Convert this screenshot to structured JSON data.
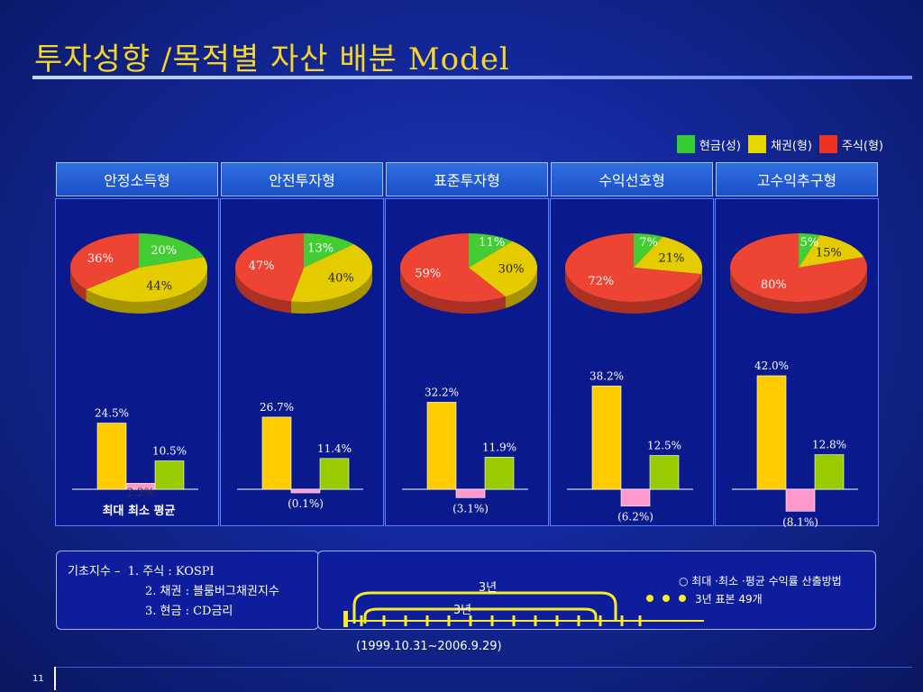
{
  "title": "투자성향 /목적별 자산 배분 Model",
  "legend": [
    {
      "label": "현금(성)",
      "color": "#33cc33"
    },
    {
      "label": "채권(형)",
      "color": "#e6d800"
    },
    {
      "label": "주식(형)",
      "color": "#ee3322"
    }
  ],
  "colors": {
    "cash": "#44cc33",
    "bond": "#e5cc00",
    "stock": "#ee4433",
    "bar_max": "#ffcc00",
    "bar_min": "#ff99cc",
    "bar_avg": "#99cc00"
  },
  "bar_axis_caption": "최대  최소  평균",
  "chart_data": [
    {
      "type": "pie",
      "name": "안정소득형",
      "slices": [
        {
          "label": "현금",
          "value": 20
        },
        {
          "label": "채권",
          "value": 44
        },
        {
          "label": "주식",
          "value": 36
        }
      ]
    },
    {
      "type": "pie",
      "name": "안전투자형",
      "slices": [
        {
          "label": "현금",
          "value": 13
        },
        {
          "label": "채권",
          "value": 40
        },
        {
          "label": "주식",
          "value": 47
        }
      ]
    },
    {
      "type": "pie",
      "name": "표준투자형",
      "slices": [
        {
          "label": "현금",
          "value": 11
        },
        {
          "label": "채권",
          "value": 30
        },
        {
          "label": "주식",
          "value": 59
        }
      ]
    },
    {
      "type": "pie",
      "name": "수익선호형",
      "slices": [
        {
          "label": "현금",
          "value": 7
        },
        {
          "label": "채권",
          "value": 21
        },
        {
          "label": "주식",
          "value": 72
        }
      ]
    },
    {
      "type": "pie",
      "name": "고수익추구형",
      "slices": [
        {
          "label": "현금",
          "value": 5
        },
        {
          "label": "채권",
          "value": 15
        },
        {
          "label": "주식",
          "value": 80
        }
      ]
    },
    {
      "type": "bar",
      "name": "안정소득형",
      "categories": [
        "최대",
        "최소",
        "평균"
      ],
      "values": [
        24.5,
        2.2,
        10.5
      ],
      "labels": [
        "24.5%",
        "2.2%",
        "10.5%"
      ]
    },
    {
      "type": "bar",
      "name": "안전투자형",
      "categories": [
        "최대",
        "최소",
        "평균"
      ],
      "values": [
        26.7,
        -0.1,
        11.4
      ],
      "labels": [
        "26.7%",
        "(0.1%)",
        "11.4%"
      ]
    },
    {
      "type": "bar",
      "name": "표준투자형",
      "categories": [
        "최대",
        "최소",
        "평균"
      ],
      "values": [
        32.2,
        -3.1,
        11.9
      ],
      "labels": [
        "32.2%",
        "(3.1%)",
        "11.9%"
      ]
    },
    {
      "type": "bar",
      "name": "수익선호형",
      "categories": [
        "최대",
        "최소",
        "평균"
      ],
      "values": [
        38.2,
        -6.2,
        12.5
      ],
      "labels": [
        "38.2%",
        "(6.2%)",
        "12.5%"
      ]
    },
    {
      "type": "bar",
      "name": "고수익추구형",
      "categories": [
        "최대",
        "최소",
        "평균"
      ],
      "values": [
        42.0,
        -8.1,
        12.8
      ],
      "labels": [
        "42.0%",
        "(8.1%)",
        "12.8%"
      ]
    }
  ],
  "index_box": {
    "heading": "기초지수 –",
    "items": [
      "1. 주식 : KOSPI",
      "2. 채권 : 블룸버그채권지수",
      "3. 현금 : CD금리"
    ]
  },
  "timeline": {
    "span_label_1": "3년",
    "span_label_2": "3년",
    "note_1": "○ 최대 ·최소 ·평균 수익률 산출방법",
    "note_2": "3년 표본 49개",
    "period": "(1999.10.31~2006.9.29)"
  },
  "page_number": "11"
}
